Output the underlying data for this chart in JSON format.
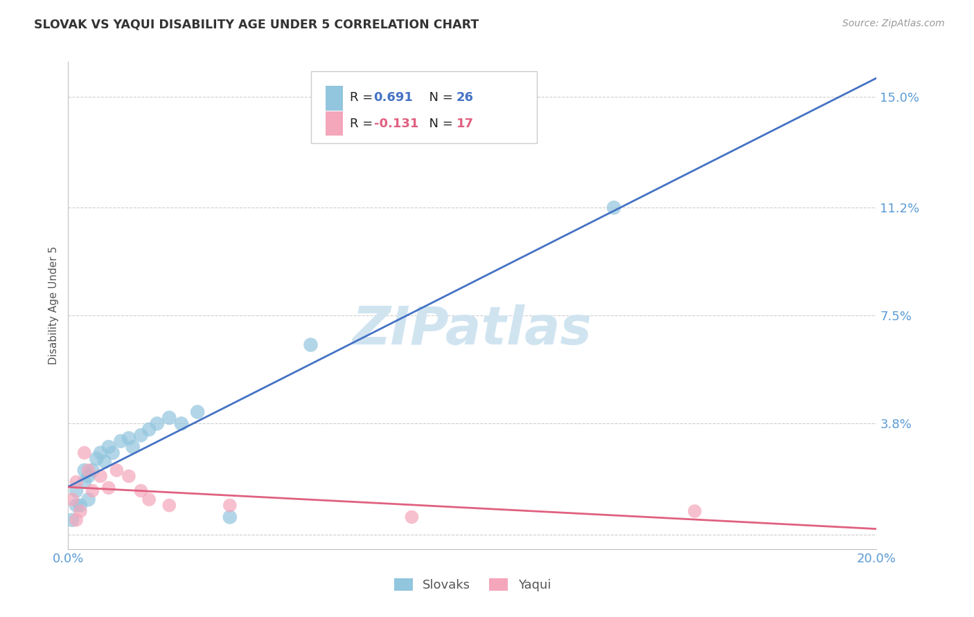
{
  "title": "SLOVAK VS YAQUI DISABILITY AGE UNDER 5 CORRELATION CHART",
  "source": "Source: ZipAtlas.com",
  "ylabel": "Disability Age Under 5",
  "xlim": [
    0.0,
    0.2
  ],
  "ylim": [
    -0.005,
    0.162
  ],
  "yticks": [
    0.0,
    0.038,
    0.075,
    0.112,
    0.15
  ],
  "ytick_labels": [
    "",
    "3.8%",
    "7.5%",
    "11.2%",
    "15.0%"
  ],
  "blue_color": "#92c5de",
  "pink_color": "#f4a6bb",
  "blue_line_color": "#4472c4",
  "pink_line_color": "#e06080",
  "blue_legend_color": "#4472c4",
  "pink_legend_color": "#e06080",
  "watermark": "ZIPatlas",
  "watermark_color": "#d0e4f0",
  "background_color": "#ffffff",
  "slovak_x": [
    0.001,
    0.002,
    0.002,
    0.003,
    0.004,
    0.004,
    0.005,
    0.005,
    0.006,
    0.007,
    0.008,
    0.009,
    0.01,
    0.011,
    0.013,
    0.015,
    0.016,
    0.018,
    0.02,
    0.022,
    0.025,
    0.028,
    0.032,
    0.04,
    0.06,
    0.135
  ],
  "slovak_y": [
    0.005,
    0.01,
    0.015,
    0.01,
    0.018,
    0.022,
    0.012,
    0.02,
    0.022,
    0.026,
    0.028,
    0.025,
    0.03,
    0.028,
    0.032,
    0.033,
    0.03,
    0.034,
    0.036,
    0.038,
    0.04,
    0.038,
    0.042,
    0.006,
    0.065,
    0.112
  ],
  "yaqui_x": [
    0.001,
    0.002,
    0.002,
    0.003,
    0.004,
    0.005,
    0.006,
    0.008,
    0.01,
    0.012,
    0.015,
    0.018,
    0.02,
    0.025,
    0.04,
    0.085,
    0.155
  ],
  "yaqui_y": [
    0.012,
    0.005,
    0.018,
    0.008,
    0.028,
    0.022,
    0.015,
    0.02,
    0.016,
    0.022,
    0.02,
    0.015,
    0.012,
    0.01,
    0.01,
    0.006,
    0.008
  ]
}
